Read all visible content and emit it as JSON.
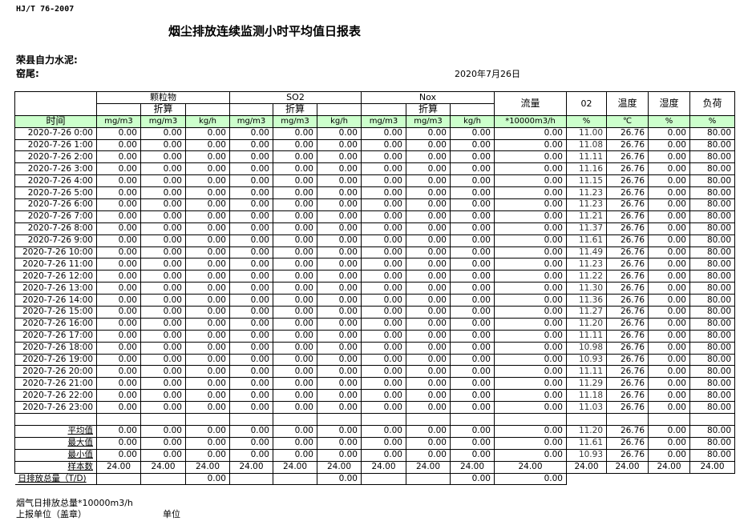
{
  "header": {
    "standard": "HJ/T  76-2007",
    "title": "烟尘排放连续监测小时平均值日报表",
    "company": "荣县自力水泥:",
    "kiln": "窑尾:",
    "date": "2020年7月26日"
  },
  "columns": {
    "groups": [
      "颗粒物",
      "SO2",
      "Nox"
    ],
    "converted": "折算",
    "flow": "流量",
    "o2": "02",
    "temp": "温度",
    "humidity": "湿度",
    "load": "负荷",
    "units": [
      "时间",
      "mg/m3",
      "mg/m3",
      "kg/h",
      "mg/m3",
      "mg/m3",
      "kg/h",
      "mg/m3",
      "mg/m3",
      "kg/h",
      "*10000m3/h",
      "%",
      "℃",
      "%",
      "%"
    ]
  },
  "rows": [
    [
      "2020-7-26 0:00",
      "0.00",
      "0.00",
      "0.00",
      "0.00",
      "0.00",
      "0.00",
      "0.00",
      "0.00",
      "0.00",
      "0.00",
      "11.00",
      "26.76",
      "0.00",
      "80.00"
    ],
    [
      "2020-7-26 1:00",
      "0.00",
      "0.00",
      "0.00",
      "0.00",
      "0.00",
      "0.00",
      "0.00",
      "0.00",
      "0.00",
      "0.00",
      "11.08",
      "26.76",
      "0.00",
      "80.00"
    ],
    [
      "2020-7-26 2:00",
      "0.00",
      "0.00",
      "0.00",
      "0.00",
      "0.00",
      "0.00",
      "0.00",
      "0.00",
      "0.00",
      "0.00",
      "11.11",
      "26.76",
      "0.00",
      "80.00"
    ],
    [
      "2020-7-26 3:00",
      "0.00",
      "0.00",
      "0.00",
      "0.00",
      "0.00",
      "0.00",
      "0.00",
      "0.00",
      "0.00",
      "0.00",
      "11.16",
      "26.76",
      "0.00",
      "80.00"
    ],
    [
      "2020-7-26 4:00",
      "0.00",
      "0.00",
      "0.00",
      "0.00",
      "0.00",
      "0.00",
      "0.00",
      "0.00",
      "0.00",
      "0.00",
      "11.15",
      "26.76",
      "0.00",
      "80.00"
    ],
    [
      "2020-7-26 5:00",
      "0.00",
      "0.00",
      "0.00",
      "0.00",
      "0.00",
      "0.00",
      "0.00",
      "0.00",
      "0.00",
      "0.00",
      "11.23",
      "26.76",
      "0.00",
      "80.00"
    ],
    [
      "2020-7-26 6:00",
      "0.00",
      "0.00",
      "0.00",
      "0.00",
      "0.00",
      "0.00",
      "0.00",
      "0.00",
      "0.00",
      "0.00",
      "11.23",
      "26.76",
      "0.00",
      "80.00"
    ],
    [
      "2020-7-26 7:00",
      "0.00",
      "0.00",
      "0.00",
      "0.00",
      "0.00",
      "0.00",
      "0.00",
      "0.00",
      "0.00",
      "0.00",
      "11.21",
      "26.76",
      "0.00",
      "80.00"
    ],
    [
      "2020-7-26 8:00",
      "0.00",
      "0.00",
      "0.00",
      "0.00",
      "0.00",
      "0.00",
      "0.00",
      "0.00",
      "0.00",
      "0.00",
      "11.37",
      "26.76",
      "0.00",
      "80.00"
    ],
    [
      "2020-7-26 9:00",
      "0.00",
      "0.00",
      "0.00",
      "0.00",
      "0.00",
      "0.00",
      "0.00",
      "0.00",
      "0.00",
      "0.00",
      "11.61",
      "26.76",
      "0.00",
      "80.00"
    ],
    [
      "2020-7-26 10:00",
      "0.00",
      "0.00",
      "0.00",
      "0.00",
      "0.00",
      "0.00",
      "0.00",
      "0.00",
      "0.00",
      "0.00",
      "11.49",
      "26.76",
      "0.00",
      "80.00"
    ],
    [
      "2020-7-26 11:00",
      "0.00",
      "0.00",
      "0.00",
      "0.00",
      "0.00",
      "0.00",
      "0.00",
      "0.00",
      "0.00",
      "0.00",
      "11.23",
      "26.76",
      "0.00",
      "80.00"
    ],
    [
      "2020-7-26 12:00",
      "0.00",
      "0.00",
      "0.00",
      "0.00",
      "0.00",
      "0.00",
      "0.00",
      "0.00",
      "0.00",
      "0.00",
      "11.22",
      "26.76",
      "0.00",
      "80.00"
    ],
    [
      "2020-7-26 13:00",
      "0.00",
      "0.00",
      "0.00",
      "0.00",
      "0.00",
      "0.00",
      "0.00",
      "0.00",
      "0.00",
      "0.00",
      "11.30",
      "26.76",
      "0.00",
      "80.00"
    ],
    [
      "2020-7-26 14:00",
      "0.00",
      "0.00",
      "0.00",
      "0.00",
      "0.00",
      "0.00",
      "0.00",
      "0.00",
      "0.00",
      "0.00",
      "11.36",
      "26.76",
      "0.00",
      "80.00"
    ],
    [
      "2020-7-26 15:00",
      "0.00",
      "0.00",
      "0.00",
      "0.00",
      "0.00",
      "0.00",
      "0.00",
      "0.00",
      "0.00",
      "0.00",
      "11.27",
      "26.76",
      "0.00",
      "80.00"
    ],
    [
      "2020-7-26 16:00",
      "0.00",
      "0.00",
      "0.00",
      "0.00",
      "0.00",
      "0.00",
      "0.00",
      "0.00",
      "0.00",
      "0.00",
      "11.20",
      "26.76",
      "0.00",
      "80.00"
    ],
    [
      "2020-7-26 17:00",
      "0.00",
      "0.00",
      "0.00",
      "0.00",
      "0.00",
      "0.00",
      "0.00",
      "0.00",
      "0.00",
      "0.00",
      "11.11",
      "26.76",
      "0.00",
      "80.00"
    ],
    [
      "2020-7-26 18:00",
      "0.00",
      "0.00",
      "0.00",
      "0.00",
      "0.00",
      "0.00",
      "0.00",
      "0.00",
      "0.00",
      "0.00",
      "10.98",
      "26.76",
      "0.00",
      "80.00"
    ],
    [
      "2020-7-26 19:00",
      "0.00",
      "0.00",
      "0.00",
      "0.00",
      "0.00",
      "0.00",
      "0.00",
      "0.00",
      "0.00",
      "0.00",
      "10.93",
      "26.76",
      "0.00",
      "80.00"
    ],
    [
      "2020-7-26 20:00",
      "0.00",
      "0.00",
      "0.00",
      "0.00",
      "0.00",
      "0.00",
      "0.00",
      "0.00",
      "0.00",
      "0.00",
      "11.11",
      "26.76",
      "0.00",
      "80.00"
    ],
    [
      "2020-7-26 21:00",
      "0.00",
      "0.00",
      "0.00",
      "0.00",
      "0.00",
      "0.00",
      "0.00",
      "0.00",
      "0.00",
      "0.00",
      "11.29",
      "26.76",
      "0.00",
      "80.00"
    ],
    [
      "2020-7-26 22:00",
      "0.00",
      "0.00",
      "0.00",
      "0.00",
      "0.00",
      "0.00",
      "0.00",
      "0.00",
      "0.00",
      "0.00",
      "11.18",
      "26.76",
      "0.00",
      "80.00"
    ],
    [
      "2020-7-26 23:00",
      "0.00",
      "0.00",
      "0.00",
      "0.00",
      "0.00",
      "0.00",
      "0.00",
      "0.00",
      "0.00",
      "0.00",
      "11.03",
      "26.76",
      "0.00",
      "80.00"
    ]
  ],
  "stats": [
    [
      "平均值",
      "0.00",
      "0.00",
      "0.00",
      "0.00",
      "0.00",
      "0.00",
      "0.00",
      "0.00",
      "0.00",
      "0.00",
      "11.20",
      "26.76",
      "0.00",
      "80.00"
    ],
    [
      "最大值",
      "0.00",
      "0.00",
      "0.00",
      "0.00",
      "0.00",
      "0.00",
      "0.00",
      "0.00",
      "0.00",
      "0.00",
      "11.61",
      "26.76",
      "0.00",
      "80.00"
    ],
    [
      "最小值",
      "0.00",
      "0.00",
      "0.00",
      "0.00",
      "0.00",
      "0.00",
      "0.00",
      "0.00",
      "0.00",
      "0.00",
      "10.93",
      "26.76",
      "0.00",
      "80.00"
    ],
    [
      "样本数",
      "24.00",
      "24.00",
      "24.00",
      "24.00",
      "24.00",
      "24.00",
      "24.00",
      "24.00",
      "24.00",
      "24.00",
      "24.00",
      "24.00",
      "24.00",
      "24.00"
    ],
    [
      "日排放总量（T/D)",
      "",
      "",
      "0.00",
      "",
      "",
      "0.00",
      "",
      "",
      "0.00",
      "0.00",
      "",
      "",
      "",
      ""
    ]
  ],
  "footer": {
    "flue_gas_total": "烟气日排放总量*10000m3/h",
    "reporting_unit": "上报单位（盖章）",
    "unit": "单位"
  }
}
